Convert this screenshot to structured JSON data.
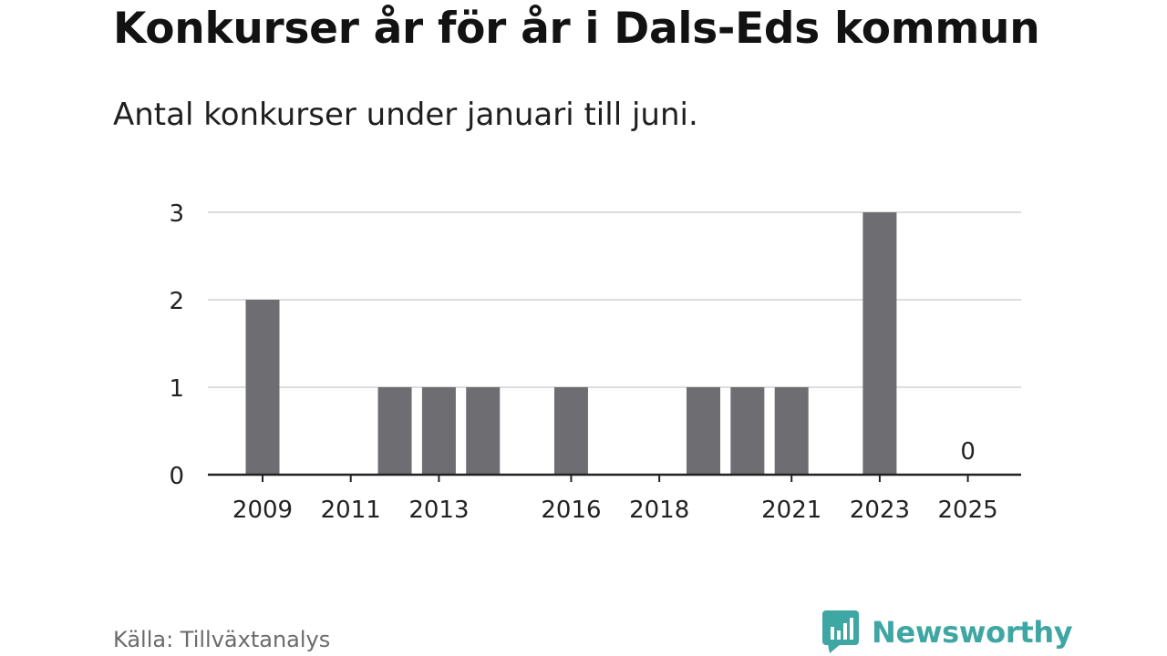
{
  "header": {
    "title": "Konkurser år för år i Dals-Eds kommun",
    "subtitle": "Antal konkurser under januari till juni."
  },
  "footer": {
    "source": "Källa: Tillväxtanalys",
    "brand": "Newsworthy"
  },
  "colors": {
    "bar": "#6e6d72",
    "grid": "#dddddd",
    "axis": "#222222",
    "brand": "#3ea6a3"
  },
  "chart_data": {
    "type": "bar",
    "categories": [
      "2009",
      "2010",
      "2011",
      "2012",
      "2013",
      "2014",
      "2015",
      "2016",
      "2017",
      "2018",
      "2019",
      "2020",
      "2021",
      "2022",
      "2023",
      "2024",
      "2025"
    ],
    "values": [
      2,
      0,
      0,
      1,
      1,
      1,
      0,
      1,
      0,
      0,
      1,
      1,
      1,
      0,
      3,
      0,
      0
    ],
    "x_tick_labels": [
      "2009",
      "2011",
      "2013",
      "2016",
      "2018",
      "2021",
      "2023",
      "2025"
    ],
    "y_ticks": [
      0,
      1,
      2,
      3
    ],
    "ylim": [
      0,
      3
    ],
    "annotations": [
      {
        "category": "2025",
        "text": "0"
      }
    ],
    "grid": true,
    "legend": "none"
  }
}
